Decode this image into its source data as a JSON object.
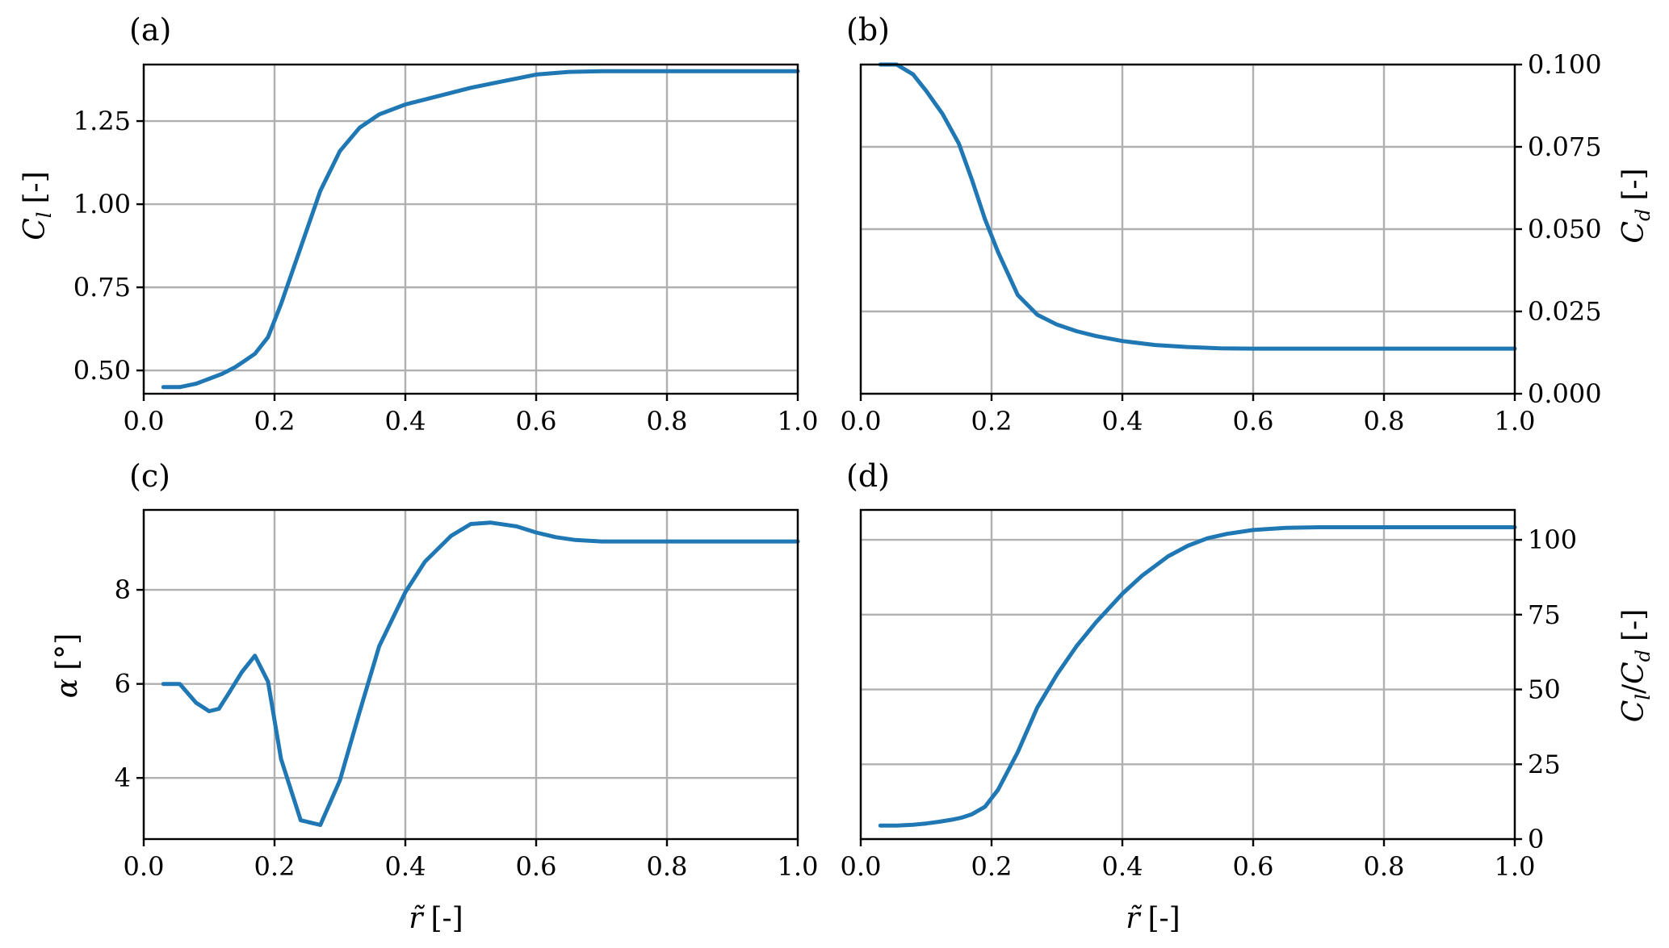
{
  "colors": {
    "series": "#1f77b4",
    "grid": "#b0b0b0",
    "axes": "#000000"
  },
  "chart_data": [
    {
      "type": "line",
      "panel": "(a)",
      "xlabel": "",
      "ylabel": "C_l [-]",
      "ylabel_main": "C",
      "ylabel_sub": "l",
      "ylabel_unit": "[-]",
      "yaxis_side": "left",
      "grid": true,
      "xlim": [
        0.0,
        1.0
      ],
      "ylim": [
        0.43,
        1.42
      ],
      "xticks": [
        0.0,
        0.2,
        0.4,
        0.6,
        0.8,
        1.0
      ],
      "xtick_labels": [
        "0.0",
        "0.2",
        "0.4",
        "0.6",
        "0.8",
        "1.0"
      ],
      "yticks": [
        0.5,
        0.75,
        1.0,
        1.25
      ],
      "ytick_labels": [
        "0.50",
        "0.75",
        "1.00",
        "1.25"
      ],
      "series": [
        {
          "x": [
            0.03,
            0.055,
            0.08,
            0.1,
            0.12,
            0.14,
            0.155,
            0.17,
            0.19,
            0.21,
            0.24,
            0.27,
            0.3,
            0.33,
            0.36,
            0.4,
            0.45,
            0.5,
            0.55,
            0.6,
            0.65,
            0.7,
            0.75,
            0.8,
            0.85,
            0.9,
            0.95,
            1.0
          ],
          "y": [
            0.45,
            0.45,
            0.46,
            0.475,
            0.49,
            0.51,
            0.53,
            0.55,
            0.6,
            0.7,
            0.87,
            1.04,
            1.16,
            1.23,
            1.27,
            1.3,
            1.325,
            1.35,
            1.37,
            1.39,
            1.398,
            1.4,
            1.4,
            1.4,
            1.4,
            1.4,
            1.4,
            1.4
          ]
        }
      ]
    },
    {
      "type": "line",
      "panel": "(b)",
      "xlabel": "",
      "ylabel": "C_d [-]",
      "ylabel_main": "C",
      "ylabel_sub": "d",
      "ylabel_unit": "[-]",
      "yaxis_side": "right",
      "grid": true,
      "xlim": [
        0.0,
        1.0
      ],
      "ylim": [
        0.0,
        0.1
      ],
      "xticks": [
        0.0,
        0.2,
        0.4,
        0.6,
        0.8,
        1.0
      ],
      "xtick_labels": [
        "0.0",
        "0.2",
        "0.4",
        "0.6",
        "0.8",
        "1.0"
      ],
      "yticks": [
        0.0,
        0.025,
        0.05,
        0.075,
        0.1
      ],
      "ytick_labels": [
        "0.000",
        "0.025",
        "0.050",
        "0.075",
        "0.100"
      ],
      "series": [
        {
          "x": [
            0.03,
            0.055,
            0.08,
            0.1,
            0.125,
            0.15,
            0.17,
            0.19,
            0.21,
            0.24,
            0.27,
            0.3,
            0.33,
            0.36,
            0.4,
            0.45,
            0.5,
            0.55,
            0.6,
            0.7,
            0.8,
            0.9,
            1.0
          ],
          "y": [
            0.1,
            0.1,
            0.097,
            0.092,
            0.085,
            0.076,
            0.065,
            0.053,
            0.043,
            0.03,
            0.024,
            0.021,
            0.019,
            0.0175,
            0.016,
            0.0148,
            0.0142,
            0.0138,
            0.0137,
            0.0137,
            0.0137,
            0.0137,
            0.0137
          ]
        }
      ]
    },
    {
      "type": "line",
      "panel": "(c)",
      "xlabel": "r̃ [-]",
      "xlabel_main": "r̃",
      "xlabel_unit": "[-]",
      "ylabel": "α [°]",
      "ylabel_main": "α",
      "ylabel_unit": "[°]",
      "yaxis_side": "left",
      "grid": true,
      "xlim": [
        0.0,
        1.0
      ],
      "ylim": [
        2.7,
        9.7
      ],
      "xticks": [
        0.0,
        0.2,
        0.4,
        0.6,
        0.8,
        1.0
      ],
      "xtick_labels": [
        "0.0",
        "0.2",
        "0.4",
        "0.6",
        "0.8",
        "1.0"
      ],
      "yticks": [
        4,
        6,
        8
      ],
      "ytick_labels": [
        "4",
        "6",
        "8"
      ],
      "series": [
        {
          "x": [
            0.03,
            0.055,
            0.08,
            0.1,
            0.115,
            0.13,
            0.15,
            0.17,
            0.19,
            0.21,
            0.24,
            0.27,
            0.3,
            0.33,
            0.36,
            0.4,
            0.43,
            0.47,
            0.5,
            0.53,
            0.57,
            0.6,
            0.63,
            0.66,
            0.7,
            0.75,
            0.8,
            0.85,
            0.9,
            0.95,
            1.0
          ],
          "y": [
            6.0,
            6.0,
            5.6,
            5.42,
            5.47,
            5.8,
            6.25,
            6.6,
            6.05,
            4.4,
            3.1,
            3.0,
            3.95,
            5.4,
            6.8,
            7.95,
            8.6,
            9.15,
            9.4,
            9.43,
            9.35,
            9.22,
            9.12,
            9.06,
            9.03,
            9.03,
            9.03,
            9.03,
            9.03,
            9.03,
            9.03
          ]
        }
      ]
    },
    {
      "type": "line",
      "panel": "(d)",
      "xlabel": "r̃ [-]",
      "xlabel_main": "r̃",
      "xlabel_unit": "[-]",
      "ylabel": "C_l/C_d [-]",
      "ylabel_main1": "C",
      "ylabel_sub1": "l",
      "ylabel_sep": "/",
      "ylabel_main2": "C",
      "ylabel_sub2": "d",
      "ylabel_unit": "[-]",
      "yaxis_side": "right",
      "grid": true,
      "xlim": [
        0.0,
        1.0
      ],
      "ylim": [
        0,
        110
      ],
      "xticks": [
        0.0,
        0.2,
        0.4,
        0.6,
        0.8,
        1.0
      ],
      "xtick_labels": [
        "0.0",
        "0.2",
        "0.4",
        "0.6",
        "0.8",
        "1.0"
      ],
      "yticks": [
        0,
        25,
        50,
        75,
        100
      ],
      "ytick_labels": [
        "0",
        "25",
        "50",
        "75",
        "100"
      ],
      "series": [
        {
          "x": [
            0.03,
            0.055,
            0.08,
            0.1,
            0.12,
            0.14,
            0.155,
            0.17,
            0.19,
            0.21,
            0.24,
            0.27,
            0.3,
            0.33,
            0.36,
            0.4,
            0.43,
            0.47,
            0.5,
            0.53,
            0.56,
            0.6,
            0.65,
            0.7,
            0.8,
            0.9,
            1.0
          ],
          "y": [
            4.5,
            4.5,
            4.8,
            5.2,
            5.8,
            6.5,
            7.2,
            8.3,
            10.8,
            16.5,
            29,
            44,
            55,
            64.5,
            72.5,
            82,
            88,
            94.5,
            98,
            100.5,
            102,
            103.3,
            104,
            104.2,
            104.2,
            104.2,
            104.2
          ]
        }
      ]
    }
  ]
}
